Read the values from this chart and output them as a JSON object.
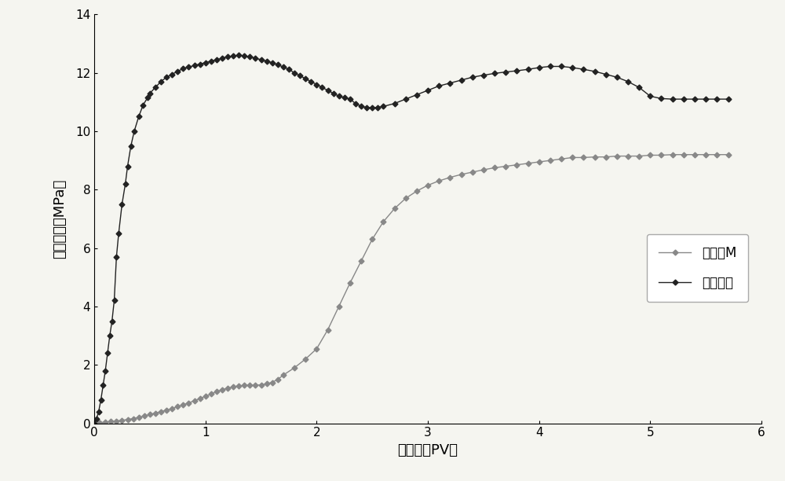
{
  "title": "",
  "xlabel": "注入量（PV）",
  "ylabel": "注入压力（MPa）",
  "xlim": [
    0,
    6
  ],
  "ylim": [
    0,
    14
  ],
  "xticks": [
    0,
    1,
    2,
    3,
    4,
    5,
    6
  ],
  "yticks": [
    0,
    2,
    4,
    6,
    8,
    10,
    12,
    14
  ],
  "legend1": "注菌种M",
  "legend2": "后续水驱",
  "line1_color": "#888888",
  "line2_color": "#222222",
  "background_color": "#f5f5f0",
  "series1_x": [
    0.0,
    0.05,
    0.1,
    0.15,
    0.2,
    0.25,
    0.3,
    0.35,
    0.4,
    0.45,
    0.5,
    0.55,
    0.6,
    0.65,
    0.7,
    0.75,
    0.8,
    0.85,
    0.9,
    0.95,
    1.0,
    1.05,
    1.1,
    1.15,
    1.2,
    1.25,
    1.3,
    1.35,
    1.4,
    1.45,
    1.5,
    1.55,
    1.6,
    1.65,
    1.7,
    1.8,
    1.9,
    2.0,
    2.1,
    2.2,
    2.3,
    2.4,
    2.5,
    2.6,
    2.7,
    2.8,
    2.9,
    3.0,
    3.1,
    3.2,
    3.3,
    3.4,
    3.5,
    3.6,
    3.7,
    3.8,
    3.9,
    4.0,
    4.1,
    4.2,
    4.3,
    4.4,
    4.5,
    4.6,
    4.7,
    4.8,
    4.9,
    5.0,
    5.1,
    5.2,
    5.3,
    5.4,
    5.5,
    5.6,
    5.7
  ],
  "series1_y": [
    0.0,
    0.02,
    0.04,
    0.06,
    0.08,
    0.1,
    0.13,
    0.16,
    0.2,
    0.25,
    0.3,
    0.35,
    0.4,
    0.45,
    0.5,
    0.57,
    0.63,
    0.7,
    0.77,
    0.85,
    0.92,
    1.0,
    1.08,
    1.15,
    1.2,
    1.25,
    1.28,
    1.3,
    1.3,
    1.3,
    1.32,
    1.35,
    1.4,
    1.5,
    1.65,
    1.9,
    2.2,
    2.55,
    3.2,
    4.0,
    4.8,
    5.55,
    6.3,
    6.9,
    7.35,
    7.7,
    7.95,
    8.15,
    8.3,
    8.42,
    8.52,
    8.6,
    8.68,
    8.75,
    8.8,
    8.85,
    8.9,
    8.95,
    9.0,
    9.05,
    9.1,
    9.1,
    9.12,
    9.12,
    9.15,
    9.15,
    9.15,
    9.18,
    9.18,
    9.2,
    9.2,
    9.2,
    9.2,
    9.2,
    9.2
  ],
  "series2_x": [
    0.0,
    0.02,
    0.04,
    0.06,
    0.08,
    0.1,
    0.12,
    0.14,
    0.16,
    0.18,
    0.2,
    0.22,
    0.25,
    0.28,
    0.3,
    0.33,
    0.36,
    0.4,
    0.44,
    0.48,
    0.5,
    0.55,
    0.6,
    0.65,
    0.7,
    0.75,
    0.8,
    0.85,
    0.9,
    0.95,
    1.0,
    1.05,
    1.1,
    1.15,
    1.2,
    1.25,
    1.3,
    1.35,
    1.4,
    1.45,
    1.5,
    1.55,
    1.6,
    1.65,
    1.7,
    1.75,
    1.8,
    1.85,
    1.9,
    1.95,
    2.0,
    2.05,
    2.1,
    2.15,
    2.2,
    2.25,
    2.3,
    2.35,
    2.4,
    2.45,
    2.5,
    2.55,
    2.6,
    2.7,
    2.8,
    2.9,
    3.0,
    3.1,
    3.2,
    3.3,
    3.4,
    3.5,
    3.6,
    3.7,
    3.8,
    3.9,
    4.0,
    4.1,
    4.2,
    4.3,
    4.4,
    4.5,
    4.6,
    4.7,
    4.8,
    4.9,
    5.0,
    5.1,
    5.2,
    5.3,
    5.4,
    5.5,
    5.6,
    5.7
  ],
  "series2_y": [
    0.0,
    0.15,
    0.4,
    0.8,
    1.3,
    1.8,
    2.4,
    3.0,
    3.5,
    4.2,
    5.7,
    6.5,
    7.5,
    8.2,
    8.8,
    9.5,
    10.0,
    10.5,
    10.9,
    11.15,
    11.3,
    11.5,
    11.7,
    11.85,
    11.95,
    12.05,
    12.15,
    12.2,
    12.25,
    12.3,
    12.35,
    12.4,
    12.45,
    12.5,
    12.55,
    12.58,
    12.6,
    12.58,
    12.55,
    12.5,
    12.45,
    12.4,
    12.35,
    12.28,
    12.2,
    12.12,
    12.0,
    11.9,
    11.8,
    11.7,
    11.6,
    11.5,
    11.4,
    11.3,
    11.2,
    11.15,
    11.1,
    10.95,
    10.85,
    10.82,
    10.8,
    10.82,
    10.85,
    10.95,
    11.1,
    11.25,
    11.4,
    11.55,
    11.65,
    11.75,
    11.85,
    11.92,
    11.98,
    12.03,
    12.07,
    12.12,
    12.18,
    12.22,
    12.22,
    12.18,
    12.12,
    12.05,
    11.95,
    11.85,
    11.7,
    11.5,
    11.2,
    11.12,
    11.1,
    11.1,
    11.1,
    11.1,
    11.1,
    11.1
  ]
}
